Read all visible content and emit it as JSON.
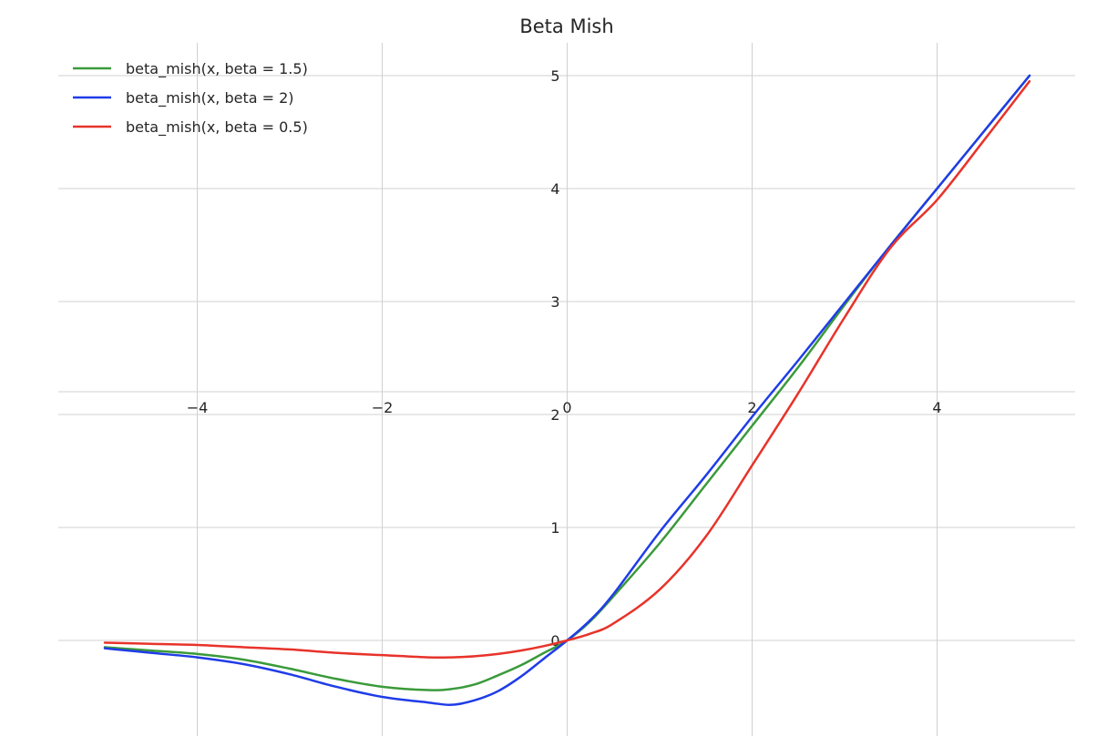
{
  "chart_data": {
    "type": "line",
    "title": "Beta Mish",
    "xlabel": "",
    "ylabel": "",
    "xlim": [
      -5,
      5
    ],
    "ylim": [
      -0.85,
      5.3
    ],
    "xticks": [
      -4,
      -2,
      0,
      2,
      4
    ],
    "xtick_labels": [
      "−4",
      "−2",
      "0",
      "2",
      "4"
    ],
    "yticks": [
      0,
      1,
      2,
      3,
      4,
      5
    ],
    "ytick_labels": [
      "0",
      "1",
      "2",
      "3",
      "4",
      "5"
    ],
    "grid": true,
    "legend_position": "top-left",
    "x": [
      -5,
      -4.5,
      -4,
      -3.5,
      -3,
      -2.5,
      -2,
      -1.5,
      -1.25,
      -1,
      -0.75,
      -0.5,
      -0.25,
      0,
      0.25,
      0.5,
      1,
      1.5,
      2,
      2.5,
      3,
      3.5,
      4,
      4.5,
      5
    ],
    "series": [
      {
        "name": "beta_mish(x, beta = 1.5)",
        "color": "#3a9a3a",
        "values": [
          -0.06,
          -0.09,
          -0.12,
          -0.17,
          -0.25,
          -0.34,
          -0.41,
          -0.44,
          -0.43,
          -0.39,
          -0.31,
          -0.22,
          -0.11,
          0,
          0.17,
          0.39,
          0.86,
          1.38,
          1.9,
          2.42,
          2.97,
          3.5,
          4.0,
          4.5,
          5.0
        ]
      },
      {
        "name": "beta_mish(x, beta = 2)",
        "color": "#1f3ce8",
        "values": [
          -0.07,
          -0.11,
          -0.15,
          -0.21,
          -0.3,
          -0.41,
          -0.5,
          -0.55,
          -0.57,
          -0.53,
          -0.45,
          -0.32,
          -0.16,
          0,
          0.18,
          0.41,
          0.96,
          1.46,
          1.98,
          2.48,
          2.99,
          3.5,
          4.0,
          4.5,
          5.0
        ]
      },
      {
        "name": "beta_mish(x, beta = 0.5)",
        "color": "#e8332a",
        "values": [
          -0.02,
          -0.03,
          -0.04,
          -0.06,
          -0.08,
          -0.11,
          -0.13,
          -0.15,
          -0.15,
          -0.14,
          -0.12,
          -0.09,
          -0.05,
          0,
          0.06,
          0.15,
          0.45,
          0.92,
          1.55,
          2.19,
          2.86,
          3.48,
          3.9,
          4.42,
          4.95
        ]
      }
    ]
  }
}
